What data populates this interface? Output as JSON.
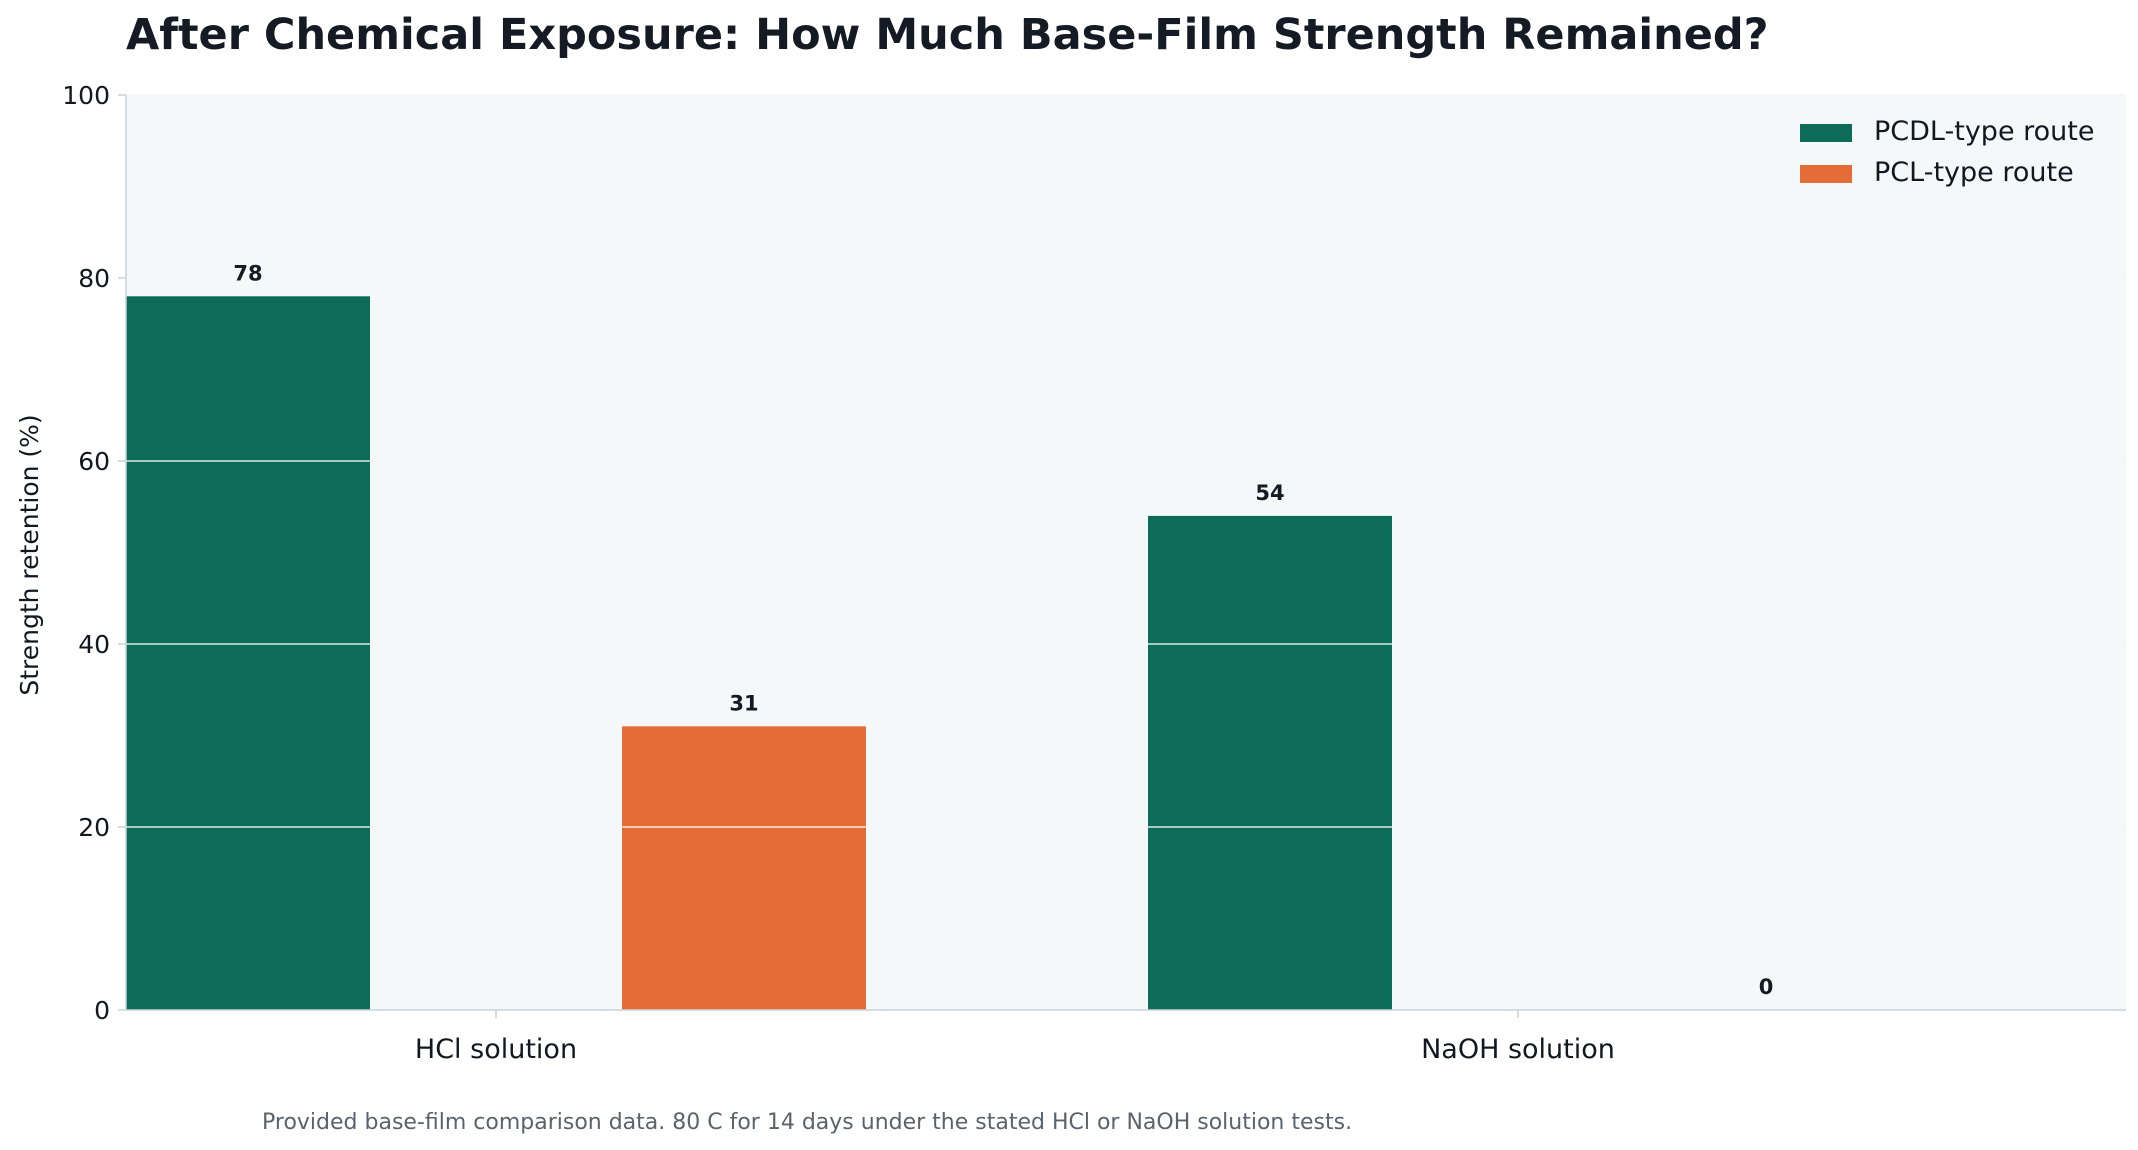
{
  "chart_data": {
    "type": "bar",
    "title": "After Chemical Exposure: How Much Base-Film Strength Remained?",
    "ylabel": "Strength retention (%)",
    "xlabel": "",
    "ylim": [
      0,
      100
    ],
    "yticks": [
      0,
      20,
      40,
      60,
      80,
      100
    ],
    "categories": [
      "HCl solution",
      "NaOH solution"
    ],
    "series": [
      {
        "name": "PCDL-type route",
        "color": "#0d6b5a",
        "values": [
          78,
          54
        ]
      },
      {
        "name": "PCL-type route",
        "color": "#e56c36",
        "values": [
          31,
          0
        ]
      }
    ],
    "value_labels": [
      "78",
      "31",
      "54",
      "0"
    ],
    "grid": true,
    "legend": "top-right",
    "plot_background": "#f5f8f9",
    "footnote": "Provided base-film comparison data. 80 C for 14 days under the stated HCl or NaOH solution tests."
  }
}
